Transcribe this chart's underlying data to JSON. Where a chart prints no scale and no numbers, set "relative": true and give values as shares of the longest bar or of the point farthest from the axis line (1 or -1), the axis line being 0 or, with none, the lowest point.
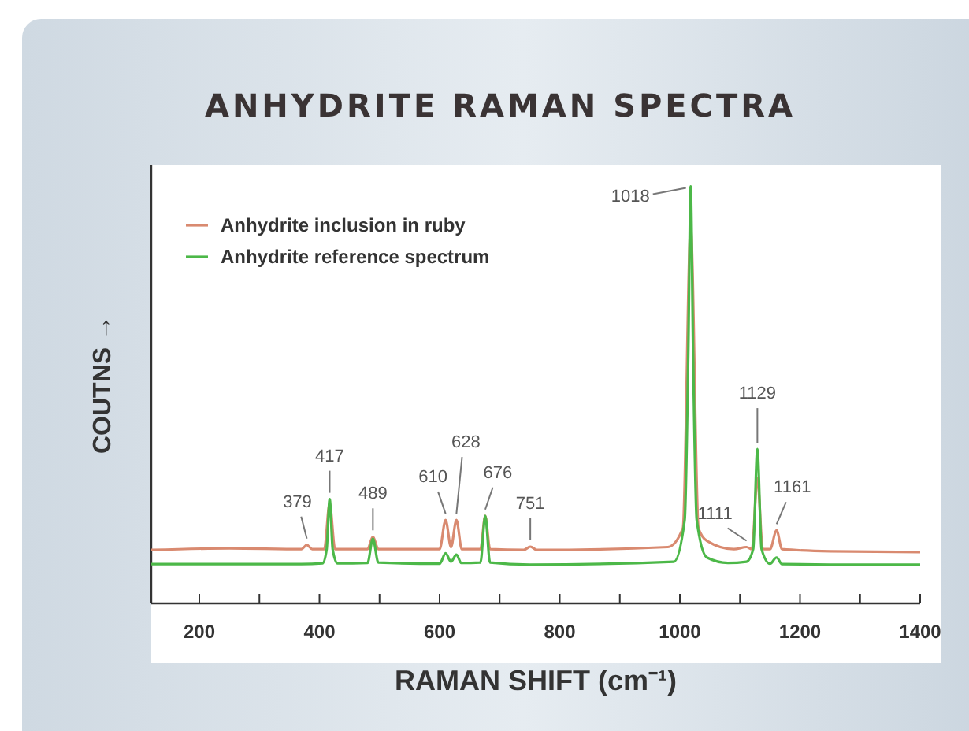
{
  "chart_data": {
    "type": "line",
    "title": "ANHYDRITE RAMAN SPECTRA",
    "xlabel": "RAMAN SHIFT (cm⁻¹)",
    "ylabel": "COUTNS →",
    "relative": true,
    "xlim": [
      120,
      1400
    ],
    "xticks": [
      200,
      {
        "value": 300,
        "label": null
      },
      400,
      {
        "value": 500,
        "label": null
      },
      600,
      {
        "value": 700,
        "label": null
      },
      800,
      {
        "value": 900,
        "label": null
      },
      1000,
      {
        "value": 1100,
        "label": null
      },
      1200,
      {
        "value": 1300,
        "label": null
      },
      1400
    ],
    "tick_labels": "x",
    "legend": "top left",
    "grid": false,
    "line_style": "solid",
    "series": [
      {
        "name": "Anhydrite inclusion in ruby",
        "color": "#d98a70",
        "x": [
          120,
          250,
          370,
          379,
          388,
          408,
          417,
          426,
          480,
          489,
          498,
          600,
          610,
          619,
          628,
          637,
          668,
          676,
          684,
          740,
          751,
          762,
          980,
          1005,
          1018,
          1031,
          1045,
          1090,
          1111,
          1120,
          1129,
          1138,
          1150,
          1161,
          1170,
          1250,
          1400
        ],
        "values": [
          0.128,
          0.132,
          0.13,
          0.14,
          0.13,
          0.13,
          0.24,
          0.13,
          0.13,
          0.16,
          0.13,
          0.13,
          0.2,
          0.135,
          0.2,
          0.13,
          0.13,
          0.21,
          0.13,
          0.128,
          0.136,
          0.128,
          0.135,
          0.18,
          0.9,
          0.18,
          0.15,
          0.13,
          0.135,
          0.13,
          0.3,
          0.13,
          0.13,
          0.175,
          0.13,
          0.125,
          0.123
        ]
      },
      {
        "name": "Anhydrite reference spectrum",
        "color": "#4cb848",
        "x": [
          120,
          370,
          405,
          412,
          417,
          422,
          430,
          480,
          489,
          498,
          600,
          610,
          619,
          628,
          636,
          668,
          676,
          684,
          750,
          990,
          1008,
          1014,
          1018,
          1022,
          1028,
          1045,
          1080,
          1111,
          1122,
          1129,
          1136,
          1150,
          1161,
          1170,
          1250,
          1400
        ],
        "values": [
          0.094,
          0.094,
          0.096,
          0.13,
          0.25,
          0.13,
          0.096,
          0.097,
          0.155,
          0.098,
          0.095,
          0.12,
          0.1,
          0.117,
          0.097,
          0.098,
          0.21,
          0.098,
          0.093,
          0.1,
          0.2,
          0.6,
          1,
          0.6,
          0.2,
          0.11,
          0.097,
          0.1,
          0.13,
          0.37,
          0.13,
          0.095,
          0.11,
          0.094,
          0.093,
          0.093
        ]
      }
    ],
    "annotations": [
      {
        "text": "379",
        "x": 379,
        "y": 0.14
      },
      {
        "text": "417",
        "x": 417,
        "y": 0.25
      },
      {
        "text": "489",
        "x": 489,
        "y": 0.16
      },
      {
        "text": "610",
        "x": 610,
        "y": 0.2
      },
      {
        "text": "628",
        "x": 628,
        "y": 0.2
      },
      {
        "text": "676",
        "x": 676,
        "y": 0.21
      },
      {
        "text": "751",
        "x": 751,
        "y": 0.136
      },
      {
        "text": "1018",
        "x": 1018,
        "y": 1
      },
      {
        "text": "1111",
        "x": 1111,
        "y": 0.135
      },
      {
        "text": "1129",
        "x": 1129,
        "y": 0.37
      },
      {
        "text": "1161",
        "x": 1161,
        "y": 0.175
      }
    ]
  }
}
